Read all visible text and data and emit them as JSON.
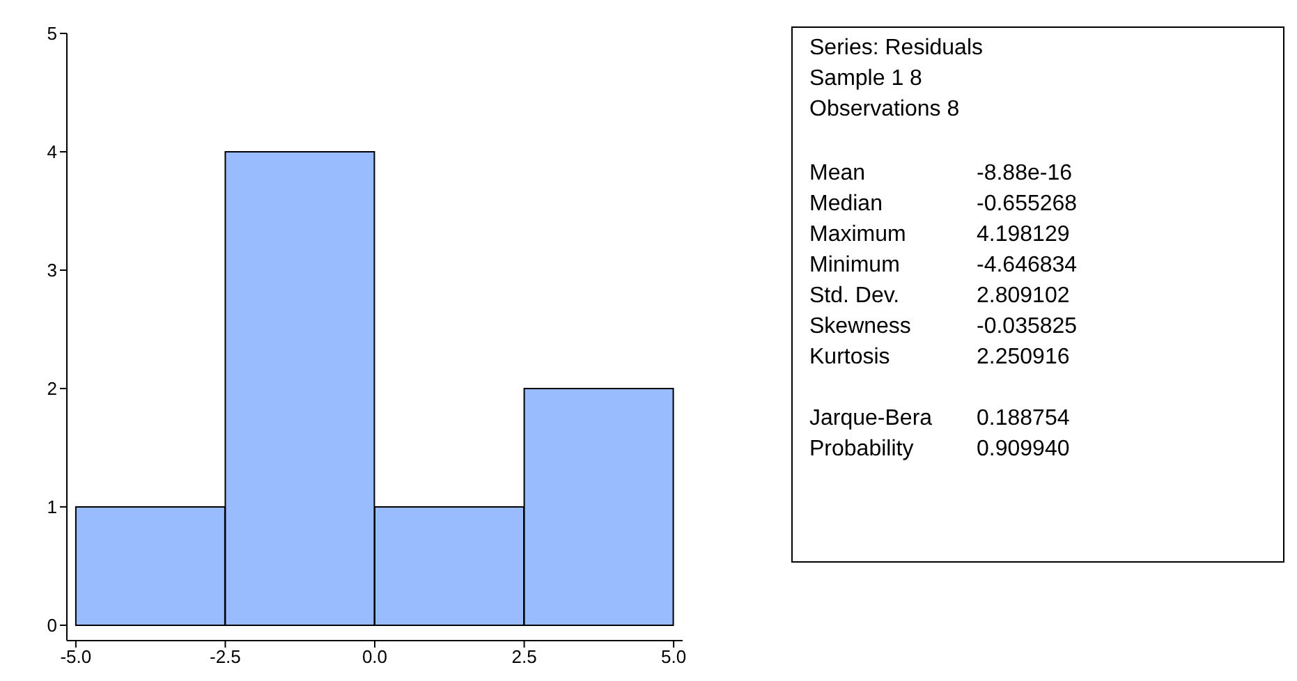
{
  "chart_data": [
    {
      "type": "histogram",
      "bins": [
        -5,
        -2.5,
        0,
        2.5,
        5
      ],
      "values": [
        1,
        4,
        1,
        2
      ],
      "color": "#99bbff",
      "xlim": [
        -5.15,
        5.15
      ],
      "xticks": [
        {
          "value": -5,
          "label": "-5.0"
        },
        {
          "value": -2.5,
          "label": "-2.5"
        },
        {
          "value": 0,
          "label": "0.0"
        },
        {
          "value": 2.5,
          "label": "2.5"
        },
        {
          "value": 5,
          "label": "5.0"
        }
      ],
      "ylim": [
        -0.13,
        5
      ],
      "yticks": [
        0,
        1,
        2,
        3,
        4,
        5
      ],
      "grid": false,
      "legend": false
    },
    {
      "type": "other",
      "annotations": [
        "Series: Residuals",
        "Sample 1 8",
        "Observations 8",
        "Mean",
        "-8.88e-16",
        "Median",
        "-0.655268",
        "Maximum",
        "4.198129",
        "Minimum",
        "-4.646834",
        "Std. Dev.",
        "2.809102",
        "Skewness",
        "-0.035825",
        "Kurtosis",
        "2.250916",
        "Jarque-Bera",
        "0.188754",
        "Probability",
        "0.909940"
      ]
    }
  ]
}
